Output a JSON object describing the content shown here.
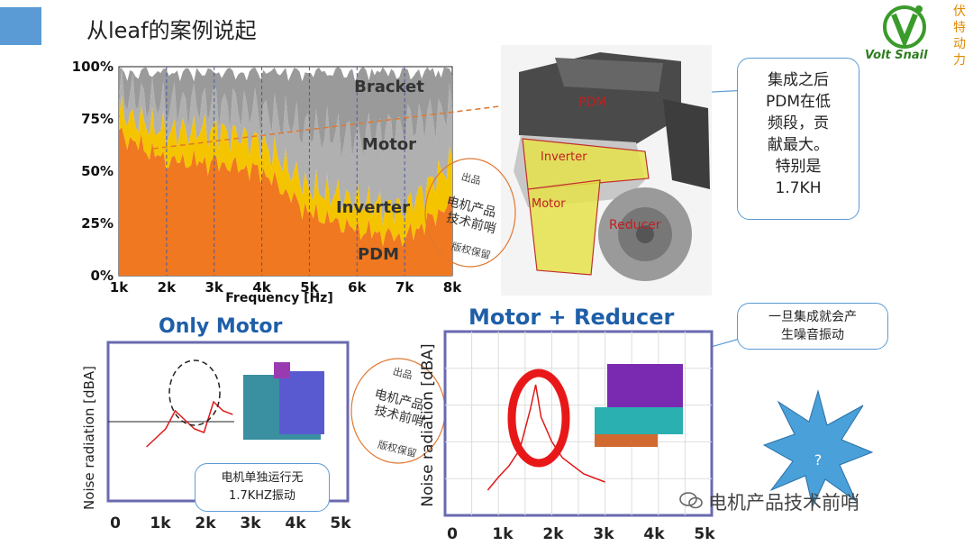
{
  "header": {
    "title": "从leaf的案例说起"
  },
  "logo": {
    "brand": "Volt Snail",
    "vertical_text": "伏特动力"
  },
  "stacked_chart": {
    "y_ticks": [
      "100%",
      "75%",
      "50%",
      "25%",
      "0%"
    ],
    "x_ticks": [
      "1k",
      "2k",
      "3k",
      "4k",
      "5k",
      "6k",
      "7k",
      "8k"
    ],
    "xlabel": "Frequency [Hz]",
    "layers": [
      "Bracket",
      "Motor",
      "Inverter",
      "PDM"
    ],
    "colors": {
      "Bracket": "#9a9a9a",
      "Motor": "#b0b0b0",
      "Inverter": "#f5c400",
      "PDM": "#f07820"
    }
  },
  "engine_labels": {
    "pdm": "PDM",
    "inverter": "Inverter",
    "motor": "Motor",
    "reducer": "Reducer"
  },
  "callouts": {
    "c1": [
      "集成之后",
      "PDM在低",
      "频段，贡",
      "献最大。",
      "特别是",
      "1.7KH"
    ],
    "c2": [
      "一旦集成就会产",
      "生噪音振动"
    ],
    "c3": [
      "电机单独运行无",
      "1.7KHZ振动"
    ]
  },
  "only_motor": {
    "title": "Only Motor",
    "ylabel": "Noise radiation [dBA]",
    "x_ticks": [
      "0",
      "1k",
      "2k",
      "3k",
      "4k",
      "5k"
    ]
  },
  "motor_reducer": {
    "title": "Motor + Reducer",
    "ylabel": "Noise radiation [dBA]",
    "x_ticks": [
      "0",
      "1k",
      "2k",
      "3k",
      "4k",
      "5k"
    ]
  },
  "stamp": {
    "top": "出品",
    "line1": "电机产品",
    "line2": "技术前哨",
    "bottom": "版权保留"
  },
  "star": {
    "text": "?"
  },
  "watermark": "电机产品技术前哨",
  "chart_data": [
    {
      "type": "area",
      "x": [
        1000,
        2000,
        3000,
        4000,
        5000,
        6000,
        7000,
        8000
      ],
      "series": [
        {
          "name": "PDM",
          "values": [
            68,
            55,
            54,
            50,
            30,
            22,
            18,
            35
          ]
        },
        {
          "name": "Inverter",
          "values": [
            10,
            14,
            16,
            14,
            12,
            14,
            14,
            20
          ]
        },
        {
          "name": "Motor",
          "values": [
            10,
            13,
            13,
            15,
            28,
            30,
            40,
            25
          ]
        },
        {
          "name": "Bracket",
          "values": [
            12,
            18,
            17,
            21,
            30,
            34,
            28,
            20
          ]
        }
      ],
      "ylim": [
        0,
        100
      ],
      "xlabel": "Frequency [Hz]"
    },
    {
      "type": "line",
      "title": "Only Motor",
      "x": [
        800,
        1000,
        1200,
        1400,
        1600,
        1800,
        2000,
        2200,
        2400,
        2600
      ],
      "values": [
        20,
        25,
        30,
        40,
        35,
        30,
        28,
        45,
        40,
        38
      ],
      "xlabel": "",
      "ylabel": "Noise radiation [dBA]"
    },
    {
      "type": "line",
      "title": "Motor + Reducer",
      "x": [
        800,
        1000,
        1200,
        1400,
        1600,
        1700,
        1800,
        2000,
        2200,
        2600,
        3000
      ],
      "values": [
        10,
        18,
        25,
        35,
        60,
        75,
        55,
        40,
        30,
        20,
        15
      ],
      "xlabel": "",
      "ylabel": "Noise radiation [dBA]"
    }
  ]
}
